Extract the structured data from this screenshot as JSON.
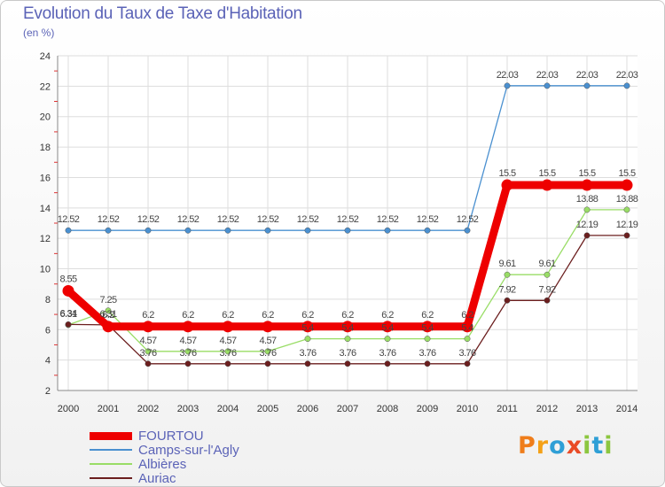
{
  "title": "Evolution du Taux de Taxe d'Habitation",
  "subtitle": "(en %)",
  "brand": {
    "letters": [
      "P",
      "r",
      "o",
      "x",
      "i",
      "t",
      "i"
    ],
    "colors": [
      "#ef7d1b",
      "#f4a118",
      "#2f9fd6",
      "#e94b26",
      "#8cc63f",
      "#2f9fd6",
      "#8cc63f"
    ]
  },
  "chart_data": {
    "type": "line",
    "title": "Evolution du Taux de Taxe d'Habitation",
    "ylabel": "(en %)",
    "x": [
      "2000",
      "2001",
      "2002",
      "2003",
      "2004",
      "2005",
      "2006",
      "2007",
      "2008",
      "2009",
      "2010",
      "2011",
      "2012",
      "2013",
      "2014"
    ],
    "ylim": [
      2,
      24
    ],
    "yticks": [
      "2",
      "4",
      "6",
      "8",
      "10",
      "12",
      "14",
      "16",
      "18",
      "20",
      "22",
      "24"
    ],
    "grid": true,
    "legend": "bottom-left",
    "series": [
      {
        "name": "FOURTOU",
        "color": "#ee0000",
        "values": [
          8.55,
          6.2,
          6.2,
          6.2,
          6.2,
          6.2,
          6.2,
          6.2,
          6.2,
          6.2,
          6.2,
          15.5,
          15.5,
          15.5,
          15.5
        ],
        "labels": [
          "8.55",
          "6.2",
          "6.2",
          "6.2",
          "6.2",
          "6.2",
          "6.2",
          "6.2",
          "6.2",
          "6.2",
          "6.2",
          "15.5",
          "15.5",
          "15.5",
          "15.5"
        ]
      },
      {
        "name": "Camps-sur-l'Agly",
        "color": "#4a90d0",
        "values": [
          12.52,
          12.52,
          12.52,
          12.52,
          12.52,
          12.52,
          12.52,
          12.52,
          12.52,
          12.52,
          12.52,
          22.03,
          22.03,
          22.03,
          22.03
        ],
        "labels": [
          "12.52",
          "12.52",
          "12.52",
          "12.52",
          "12.52",
          "12.52",
          "12.52",
          "12.52",
          "12.52",
          "12.52",
          "12.52",
          "22.03",
          "22.03",
          "22.03",
          "22.03"
        ]
      },
      {
        "name": "Albières",
        "color": "#99dd66",
        "values": [
          6.31,
          7.25,
          4.57,
          4.57,
          4.57,
          4.57,
          5.4,
          5.4,
          5.4,
          5.4,
          5.4,
          9.61,
          9.61,
          13.88,
          13.88
        ],
        "labels": [
          "6.31",
          "7.25",
          "4.57",
          "4.57",
          "4.57",
          "4.57",
          "5.4",
          "5.4",
          "5.4",
          "5.4",
          "5.4",
          "9.61",
          "9.61",
          "13.88",
          "13.88"
        ]
      },
      {
        "name": "Auriac",
        "color": "#6b1e1e",
        "values": [
          6.34,
          6.31,
          3.76,
          3.76,
          3.76,
          3.76,
          3.76,
          3.76,
          3.76,
          3.76,
          3.76,
          7.92,
          7.92,
          12.19,
          12.19
        ],
        "labels": [
          "6.34",
          "6.31",
          "3.76",
          "3.76",
          "3.76",
          "3.76",
          "3.76",
          "3.76",
          "3.76",
          "3.76",
          "3.76",
          "7.92",
          "7.92",
          "12.19",
          "12.19"
        ]
      }
    ]
  }
}
